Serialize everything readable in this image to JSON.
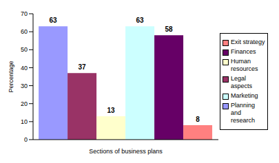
{
  "chart_data": {
    "type": "bar",
    "x_label": "Sections of business plans",
    "y_label": "Percentage",
    "categories": [
      "Planning and research",
      "Legal aspects",
      "Human resources",
      "Marketing",
      "Finances",
      "Exit strategy"
    ],
    "values": [
      63,
      37,
      13,
      63,
      58,
      8
    ],
    "colors": [
      "#9999ff",
      "#993366",
      "#ffffcc",
      "#ccffff",
      "#660066",
      "#ff8080"
    ],
    "ylim": [
      0,
      70
    ],
    "yticks": [
      0,
      10,
      20,
      30,
      40,
      50,
      60,
      70
    ],
    "grid": false,
    "legend": "right",
    "data_labels": true,
    "tick_labels": "y"
  }
}
